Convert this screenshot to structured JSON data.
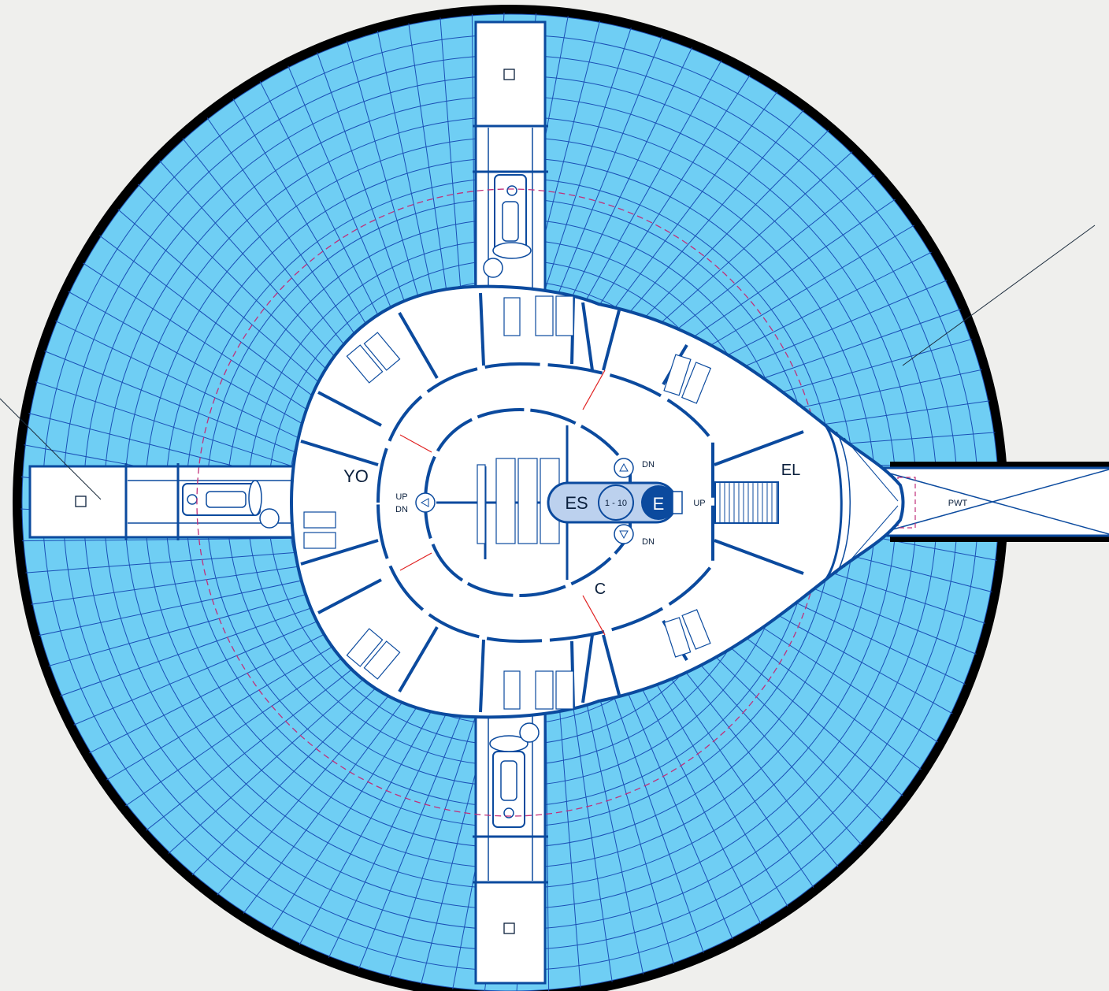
{
  "colors": {
    "background": "#efefed",
    "water": "#6fcef4",
    "grid": "#1a4fb5",
    "hull_ring": "#000000",
    "wall": "#0b4a9e",
    "floor": "#ffffff",
    "dashed_outline": "#c0307a",
    "structure_line": "#e02020",
    "core": "#bcd1ee",
    "elevator": "#0b4a9e"
  },
  "labels": {
    "yo": "YO",
    "el": "EL",
    "c": "C",
    "es": "ES",
    "floors": "1 - 10",
    "e": "E",
    "up_left": "UP",
    "dn_left": "DN",
    "up_right": "UP",
    "dn_top": "DN",
    "dn_bottom": "DN",
    "pwt": "PWT"
  },
  "icons": {
    "window_square": "square-outline-icon",
    "stair_up": "triangle-up-icon",
    "stair_down": "triangle-down-icon",
    "stair_left": "triangle-left-icon"
  }
}
